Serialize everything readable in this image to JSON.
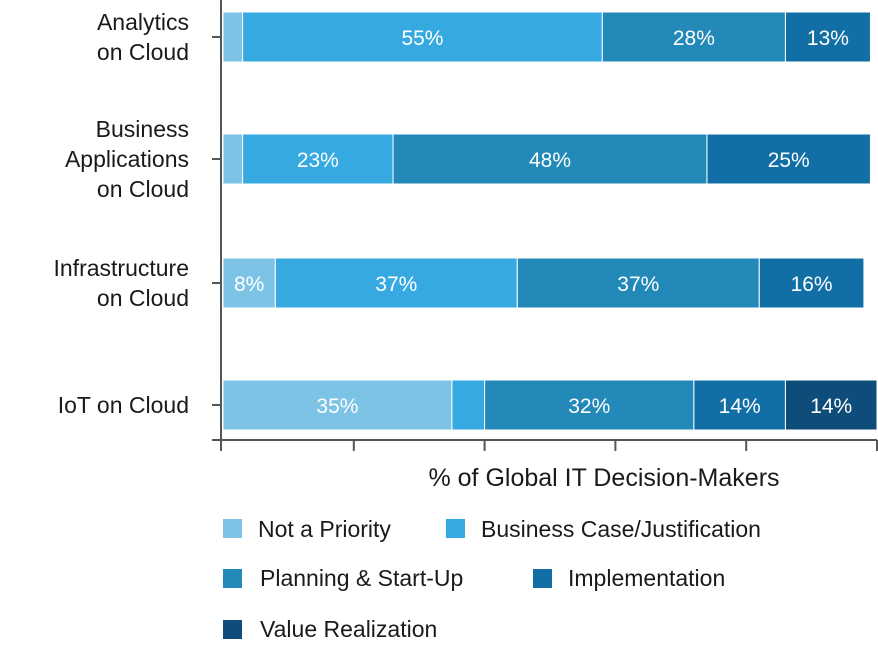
{
  "chart_data": {
    "type": "bar",
    "orientation": "horizontal",
    "stacked": true,
    "categories": [
      "Analytics\non Cloud",
      "Business\nApplications\non Cloud",
      "Infrastructure\non Cloud",
      "IoT on Cloud"
    ],
    "series": [
      {
        "name": "Not a Priority",
        "color": "#7cc3e6",
        "values": [
          3,
          3,
          8,
          35
        ],
        "labels": [
          "",
          "",
          "8%",
          "35%"
        ]
      },
      {
        "name": "Business Case/Justification",
        "color": "#36a9e1",
        "values": [
          55,
          23,
          37,
          5
        ],
        "labels": [
          "55%",
          "23%",
          "37%",
          ""
        ]
      },
      {
        "name": "Planning & Start-Up",
        "color": "#2389b8",
        "values": [
          28,
          48,
          37,
          32
        ],
        "labels": [
          "28%",
          "48%",
          "37%",
          "32%"
        ]
      },
      {
        "name": "Implementation",
        "color": "#126fa6",
        "values": [
          13,
          25,
          16,
          14
        ],
        "labels": [
          "13%",
          "25%",
          "16%",
          "14%"
        ]
      },
      {
        "name": "Value Realization",
        "color": "#0e4d7a",
        "values": [
          0,
          0,
          0,
          14
        ],
        "labels": [
          "",
          "",
          "",
          "14%"
        ]
      }
    ],
    "xlabel": "% of Global IT Decision-Makers",
    "ylabel": "",
    "xlim": [
      0,
      100
    ],
    "grid": false,
    "legend_position": "bottom"
  }
}
